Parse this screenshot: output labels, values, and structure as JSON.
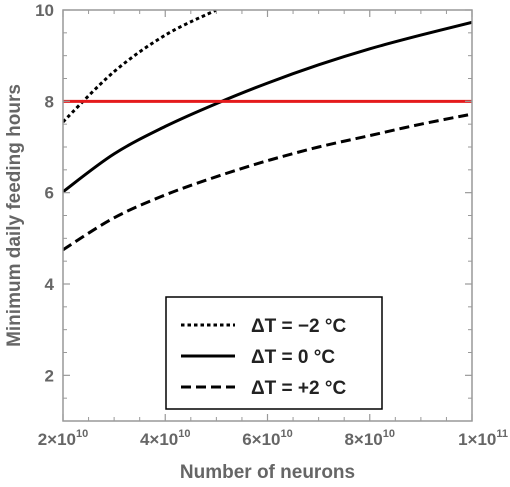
{
  "chart_data": {
    "type": "line",
    "title": "",
    "xlabel": "Number of neurons",
    "ylabel": "Minimum daily feeding hours",
    "xlim": [
      20000000000.0,
      100000000000.0
    ],
    "ylim": [
      1,
      10
    ],
    "x_ticks": [
      {
        "value": 20000000000.0,
        "mantissa": "2",
        "base": "×10",
        "exp": "10"
      },
      {
        "value": 40000000000.0,
        "mantissa": "4",
        "base": "×10",
        "exp": "10"
      },
      {
        "value": 60000000000.0,
        "mantissa": "6",
        "base": "×10",
        "exp": "10"
      },
      {
        "value": 80000000000.0,
        "mantissa": "8",
        "base": "×10",
        "exp": "10"
      },
      {
        "value": 100000000000.0,
        "mantissa": "1",
        "base": "×10",
        "exp": "11"
      }
    ],
    "y_ticks": [
      2,
      4,
      6,
      8,
      10
    ],
    "grid": false,
    "legend_position": "bottom-center",
    "series": [
      {
        "name": "ΔT = −2 °C",
        "style": "dotted",
        "color": "#000000",
        "x": [
          20000000000.0,
          30000000000.0,
          40000000000.0,
          50000000000.0
        ],
        "y": [
          7.55,
          8.65,
          9.45,
          10.0
        ]
      },
      {
        "name": "ΔT = 0 °C",
        "style": "solid",
        "color": "#000000",
        "x": [
          20000000000.0,
          30000000000.0,
          40000000000.0,
          50000000000.0,
          60000000000.0,
          70000000000.0,
          80000000000.0,
          90000000000.0,
          100000000000.0
        ],
        "y": [
          6.02,
          6.85,
          7.45,
          7.95,
          8.4,
          8.8,
          9.15,
          9.45,
          9.73
        ]
      },
      {
        "name": "ΔT = +2 °C",
        "style": "dashed",
        "color": "#000000",
        "x": [
          20000000000.0,
          30000000000.0,
          40000000000.0,
          50000000000.0,
          60000000000.0,
          70000000000.0,
          80000000000.0,
          90000000000.0,
          100000000000.0
        ],
        "y": [
          4.75,
          5.45,
          5.95,
          6.35,
          6.7,
          7.0,
          7.25,
          7.5,
          7.72
        ]
      }
    ],
    "reference_lines": [
      {
        "orientation": "horizontal",
        "value": 8,
        "color": "#e41a1c"
      }
    ]
  }
}
